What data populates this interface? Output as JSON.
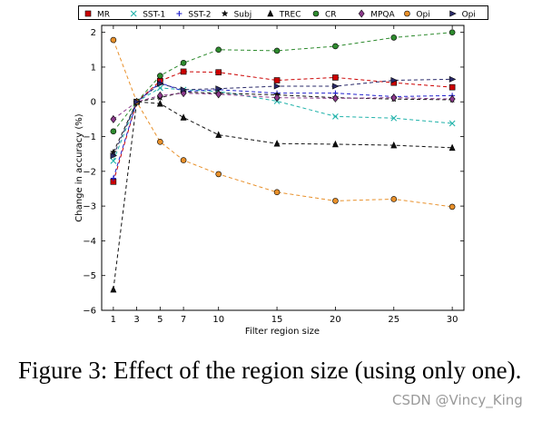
{
  "chart_data": {
    "type": "line",
    "x": [
      1,
      3,
      5,
      7,
      10,
      15,
      20,
      25,
      30
    ],
    "xticks": [
      1,
      3,
      5,
      7,
      10,
      15,
      20,
      25,
      30
    ],
    "xlim": [
      0,
      31
    ],
    "ylim": [
      -6,
      2.2
    ],
    "yticks": [
      -6,
      -5,
      -4,
      -3,
      -2,
      -1,
      0,
      1,
      2
    ],
    "xlabel": "Filter region size",
    "ylabel": "Change in accuracy (%)",
    "legend_position": "top",
    "grid": false,
    "series": [
      {
        "name": "MR",
        "color": "#cc0000",
        "marker": "square",
        "values": [
          -2.3,
          0,
          0.6,
          0.87,
          0.85,
          0.62,
          0.7,
          0.55,
          0.42
        ]
      },
      {
        "name": "SST-1",
        "color": "#20b2aa",
        "marker": "x",
        "values": [
          -1.7,
          0,
          0.4,
          0.35,
          0.3,
          0.02,
          -0.42,
          -0.47,
          -0.62
        ]
      },
      {
        "name": "SST-2",
        "color": "#2222cc",
        "marker": "plus",
        "values": [
          -2.2,
          0,
          0.55,
          0.3,
          0.35,
          0.25,
          0.25,
          0.15,
          0.18
        ]
      },
      {
        "name": "Subj",
        "color": "#111111",
        "marker": "star",
        "values": [
          -1.45,
          0,
          0.12,
          0.28,
          0.25,
          0.2,
          0.12,
          0.08,
          0.06
        ]
      },
      {
        "name": "TREC",
        "color": "#111111",
        "marker": "triangle",
        "values": [
          -5.4,
          0,
          -0.05,
          -0.45,
          -0.95,
          -1.2,
          -1.22,
          -1.25,
          -1.32
        ]
      },
      {
        "name": "CR",
        "color": "#2e8b2e",
        "marker": "circle",
        "values": [
          -0.85,
          0,
          0.75,
          1.12,
          1.5,
          1.47,
          1.6,
          1.85,
          2.0
        ]
      },
      {
        "name": "MPQA",
        "color": "#8b3a8b",
        "marker": "diamond",
        "values": [
          -0.5,
          0,
          0.18,
          0.25,
          0.22,
          0.12,
          0.1,
          0.12,
          0.08
        ]
      },
      {
        "name": "Opi",
        "color": "#e8902a",
        "marker": "circle",
        "values": [
          1.78,
          0,
          -1.15,
          -1.68,
          -2.08,
          -2.6,
          -2.85,
          -2.8,
          -3.02
        ]
      },
      {
        "name": "Opi",
        "color": "#2a2a6a",
        "marker": "triangle-right",
        "values": [
          -1.55,
          0,
          0.52,
          0.35,
          0.38,
          0.45,
          0.45,
          0.62,
          0.65
        ]
      }
    ]
  },
  "caption": "Figure 3:  Effect of the region size (using only one).",
  "watermark": "CSDN @Vincy_King"
}
